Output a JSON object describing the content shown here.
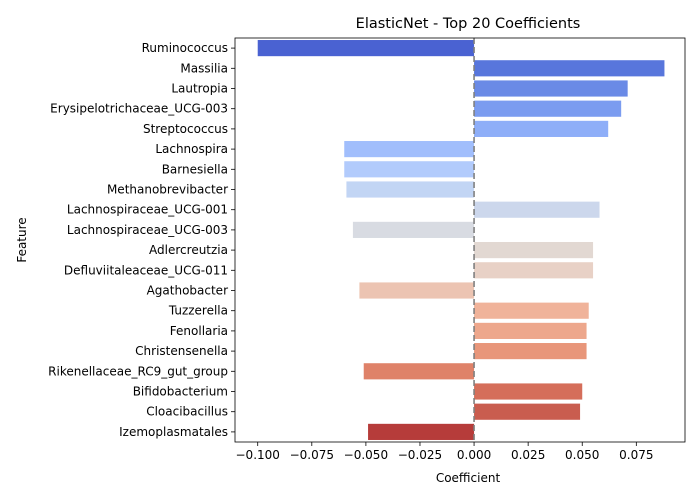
{
  "chart_data": {
    "type": "bar",
    "orientation": "horizontal",
    "title": "ElasticNet - Top 20 Coefficients",
    "xlabel": "Coefficient",
    "ylabel": "Feature",
    "xlim": [
      -0.1105,
      0.0975
    ],
    "xticks": [
      -0.1,
      -0.075,
      -0.05,
      -0.025,
      0.0,
      0.025,
      0.05,
      0.075
    ],
    "xtick_labels": [
      "−0.100",
      "−0.075",
      "−0.050",
      "−0.025",
      "0.000",
      "0.025",
      "0.050",
      "0.075"
    ],
    "grid": false,
    "zero_line": {
      "style": "dashed",
      "color": "#808080"
    },
    "categories": [
      "Ruminococcus",
      "Massilia",
      "Lautropia",
      "Erysipelotrichaceae_UCG-003",
      "Streptococcus",
      "Lachnospira",
      "Barnesiella",
      "Methanobrevibacter",
      "Lachnospiraceae_UCG-001",
      "Lachnospiraceae_UCG-003",
      "Adlercreutzia",
      "Defluviitaleaceae_UCG-011",
      "Agathobacter",
      "Tuzzerella",
      "Fenollaria",
      "Christensenella",
      "Rikenellaceae_RC9_gut_group",
      "Bifidobacterium",
      "Cloacibacillus",
      "Izemoplasmatales"
    ],
    "values": [
      -0.1,
      0.088,
      0.071,
      0.068,
      0.062,
      -0.06,
      -0.06,
      -0.059,
      0.058,
      -0.056,
      0.055,
      0.055,
      -0.053,
      0.053,
      0.052,
      0.052,
      -0.051,
      0.05,
      0.049,
      -0.049
    ],
    "colors": [
      "#4a62d2",
      "#5876dc",
      "#6a8ae6",
      "#7b9cf0",
      "#8eaef8",
      "#a1befc",
      "#b2cbfc",
      "#c2d5f4",
      "#ccd7ec",
      "#d8dbe2",
      "#e2d8d2",
      "#e8d1c6",
      "#ecc4b2",
      "#f0b39a",
      "#eda78c",
      "#e8967a",
      "#df8269",
      "#d56e5a",
      "#c95d4f",
      "#b63c3a"
    ]
  }
}
